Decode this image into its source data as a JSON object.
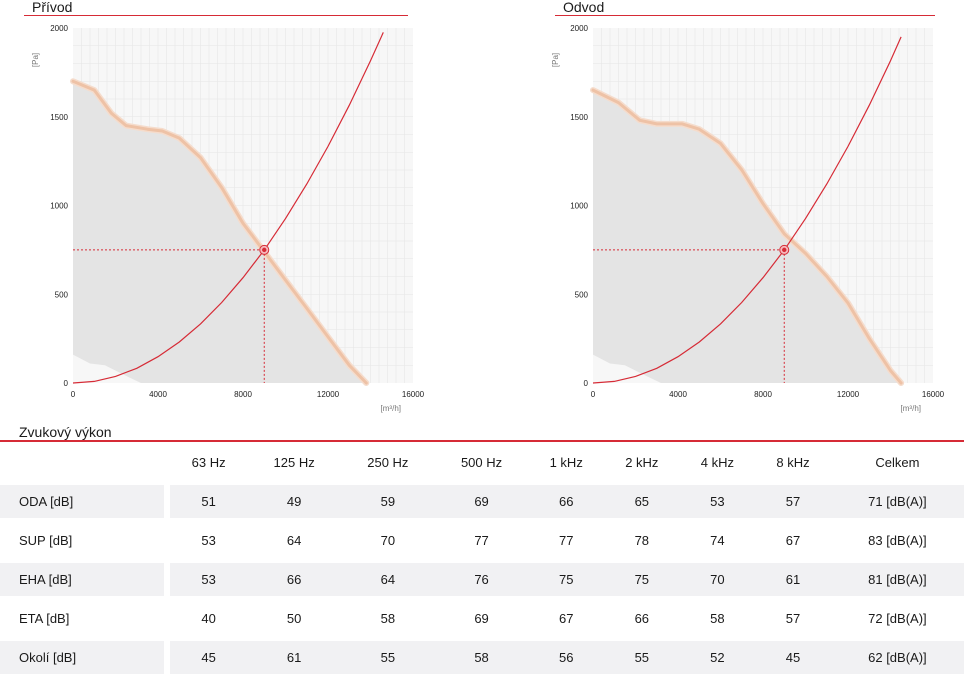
{
  "charts": [
    {
      "id": "privod",
      "title": "Přívod",
      "x_ticks": [
        "0",
        "4000",
        "8000",
        "12000",
        "16000"
      ],
      "y_ticks": [
        "0",
        "500",
        "1000",
        "1500",
        "2000"
      ],
      "x_unit": "[m³/h]",
      "y_unit": "[Pa]"
    },
    {
      "id": "odvod",
      "title": "Odvod",
      "x_ticks": [
        "0",
        "4000",
        "8000",
        "12000",
        "16000"
      ],
      "y_ticks": [
        "0",
        "500",
        "1000",
        "1500",
        "2000"
      ],
      "x_unit": "[m³/h]",
      "y_unit": "[Pa]"
    }
  ],
  "chart_data": [
    {
      "type": "line",
      "title": "Přívod",
      "xlabel": "[m³/h]",
      "ylabel": "[Pa]",
      "xlim": [
        0,
        16000
      ],
      "ylim": [
        0,
        2000
      ],
      "grid": true,
      "series": [
        {
          "x": [
            0,
            1000,
            1800,
            2500,
            3500,
            4200,
            5000,
            6000,
            7000,
            8000,
            9000,
            10000,
            11000,
            12000,
            13000,
            13800
          ],
          "y": [
            1700,
            1650,
            1520,
            1450,
            1430,
            1420,
            1380,
            1270,
            1100,
            900,
            740,
            580,
            420,
            260,
            100,
            0
          ]
        },
        {
          "x": [
            0,
            1000,
            2000,
            3000,
            4000,
            5000,
            6000,
            7000,
            8000,
            9000,
            10000,
            11000,
            12000,
            13000,
            14000,
            14600
          ],
          "y": [
            0,
            9,
            37,
            83,
            148,
            231,
            333,
            454,
            593,
            750,
            926,
            1121,
            1333,
            1565,
            1815,
            1975
          ]
        }
      ],
      "operating_point": {
        "x": 9000,
        "y": 750
      },
      "shaded_region": true
    },
    {
      "type": "line",
      "title": "Odvod",
      "xlabel": "[m³/h]",
      "ylabel": "[Pa]",
      "xlim": [
        0,
        16000
      ],
      "ylim": [
        0,
        2000
      ],
      "grid": true,
      "series": [
        {
          "x": [
            0,
            1200,
            2200,
            3000,
            4200,
            5000,
            6000,
            7000,
            8000,
            9000,
            10000,
            11000,
            12000,
            13000,
            14000,
            14500
          ],
          "y": [
            1650,
            1580,
            1480,
            1460,
            1460,
            1430,
            1350,
            1200,
            1010,
            840,
            730,
            600,
            450,
            250,
            70,
            0
          ]
        },
        {
          "x": [
            0,
            1000,
            2000,
            3000,
            4000,
            5000,
            6000,
            7000,
            8000,
            9000,
            10000,
            11000,
            12000,
            13000,
            14000,
            14500
          ],
          "y": [
            0,
            9,
            37,
            83,
            148,
            231,
            333,
            454,
            593,
            750,
            926,
            1121,
            1333,
            1565,
            1815,
            1950
          ]
        }
      ],
      "operating_point": {
        "x": 9000,
        "y": 750
      },
      "shaded_region": true
    }
  ],
  "section": {
    "title": "Zvukový výkon"
  },
  "table": {
    "headers": [
      "",
      "63 Hz",
      "125 Hz",
      "250 Hz",
      "500 Hz",
      "1 kHz",
      "2 kHz",
      "4 kHz",
      "8 kHz",
      "Celkem"
    ],
    "rows": [
      {
        "label": "ODA [dB]",
        "values": [
          "51",
          "49",
          "59",
          "69",
          "66",
          "65",
          "53",
          "57",
          "71 [dB(A)]"
        ]
      },
      {
        "label": "SUP [dB]",
        "values": [
          "53",
          "64",
          "70",
          "77",
          "77",
          "78",
          "74",
          "67",
          "83 [dB(A)]"
        ]
      },
      {
        "label": "EHA [dB]",
        "values": [
          "53",
          "66",
          "64",
          "76",
          "75",
          "75",
          "70",
          "61",
          "81 [dB(A)]"
        ]
      },
      {
        "label": "ETA [dB]",
        "values": [
          "40",
          "50",
          "58",
          "69",
          "67",
          "66",
          "58",
          "57",
          "72 [dB(A)]"
        ]
      },
      {
        "label": "Okolí [dB]",
        "values": [
          "45",
          "61",
          "55",
          "58",
          "56",
          "55",
          "52",
          "45",
          "62 [dB(A)]"
        ]
      }
    ]
  },
  "colors": {
    "accent": "#d62b36",
    "fan_curve": "#eec2a6",
    "fan_curve_light": "#f5dccc",
    "shade": "#e4e4e4",
    "grid": "#e6e6e6"
  }
}
